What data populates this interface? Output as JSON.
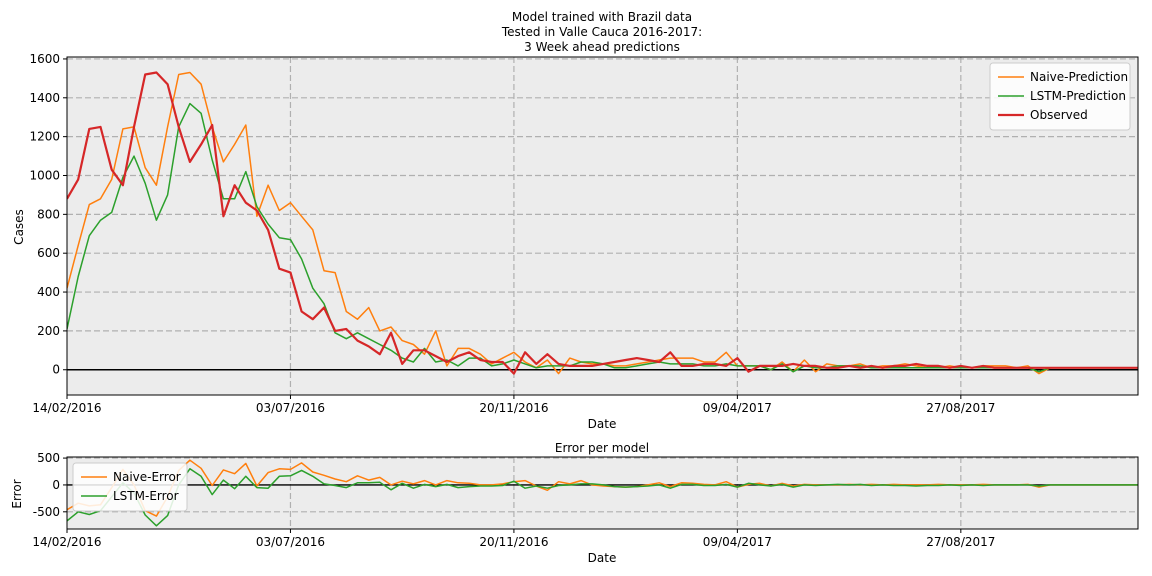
{
  "colors": {
    "naive": "#ff7f0e",
    "lstm": "#2ca02c",
    "observed": "#d62728",
    "plot_bg": "#ececec",
    "grid": "#b0b0b0"
  },
  "chart_data": [
    {
      "type": "line",
      "title_lines": [
        "Model trained with Brazil data",
        "Tested in Valle Cauca 2016-2017:",
        "3 Week ahead predictions"
      ],
      "xlabel": "Date",
      "ylabel": "Cases",
      "x_start": "14/02/2016",
      "x_step_days": 7,
      "xlim": [
        "14/02/2016",
        "16/12/2017"
      ],
      "ylim": [
        -130,
        1610
      ],
      "yticks": [
        0,
        200,
        400,
        600,
        800,
        1000,
        1200,
        1400,
        1600
      ],
      "xticks": [
        "14/02/2016",
        "03/07/2016",
        "20/11/2016",
        "09/04/2017",
        "27/08/2017"
      ],
      "grid": true,
      "zero_line": true,
      "legend_position": "top-right",
      "series": [
        {
          "name": "Naive-Prediction",
          "color_key": "naive",
          "width": 1.5,
          "values": [
            420,
            640,
            850,
            880,
            980,
            1240,
            1250,
            1040,
            950,
            1250,
            1520,
            1530,
            1470,
            1250,
            1070,
            1160,
            1260,
            790,
            950,
            820,
            860,
            790,
            720,
            510,
            500,
            300,
            260,
            320,
            200,
            220,
            150,
            130,
            80,
            200,
            20,
            110,
            110,
            80,
            30,
            60,
            90,
            40,
            10,
            50,
            -20,
            60,
            40,
            30,
            30,
            20,
            20,
            30,
            40,
            50,
            60,
            60,
            60,
            40,
            40,
            90,
            20,
            20,
            20,
            0,
            40,
            -10,
            50,
            -10,
            30,
            20,
            20,
            30,
            10,
            20,
            20,
            30,
            20,
            10,
            10,
            20,
            10,
            10,
            20,
            20,
            20,
            10,
            20,
            -20,
            10,
            10,
            10,
            10,
            10,
            10,
            10,
            10,
            10,
            10,
            20,
            10,
            10,
            10,
            70,
            -20,
            0
          ],
          "note_values_also_cover_error_panel": false
        },
        {
          "name": "LSTM-Prediction",
          "color_key": "lstm",
          "width": 1.5,
          "values": [
            210,
            480,
            690,
            770,
            810,
            990,
            1100,
            960,
            770,
            900,
            1250,
            1370,
            1320,
            1080,
            880,
            880,
            1020,
            840,
            750,
            680,
            670,
            570,
            420,
            340,
            190,
            160,
            190,
            160,
            130,
            100,
            60,
            40,
            110,
            40,
            50,
            20,
            60,
            60,
            20,
            30,
            50,
            30,
            10,
            20,
            20,
            20,
            40,
            40,
            30,
            10,
            10,
            20,
            30,
            40,
            30,
            30,
            30,
            20,
            20,
            30,
            20,
            20,
            20,
            0,
            30,
            -10,
            20,
            10,
            10,
            20,
            20,
            20,
            10,
            10,
            10,
            10,
            10,
            10,
            10,
            10,
            10,
            10,
            10,
            10,
            10,
            10,
            10,
            -10,
            10,
            10,
            10,
            10,
            10,
            10,
            10,
            10,
            10,
            10,
            10,
            10,
            10,
            10,
            30,
            20,
            0
          ]
        },
        {
          "name": "Observed",
          "color_key": "observed",
          "width": 2.2,
          "values": [
            880,
            980,
            1240,
            1250,
            1030,
            950,
            1250,
            1520,
            1530,
            1470,
            1250,
            1070,
            1160,
            1260,
            790,
            950,
            860,
            820,
            720,
            520,
            500,
            300,
            260,
            320,
            200,
            210,
            150,
            120,
            80,
            190,
            30,
            100,
            100,
            70,
            40,
            70,
            90,
            50,
            40,
            40,
            -20,
            90,
            30,
            80,
            30,
            20,
            20,
            20,
            30,
            40,
            50,
            60,
            50,
            40,
            90,
            20,
            20,
            30,
            30,
            20,
            60,
            -10,
            20,
            20,
            20,
            30,
            20,
            20,
            10,
            10,
            20,
            10,
            20,
            10,
            20,
            20,
            30,
            20,
            20,
            10,
            20,
            10,
            20,
            10,
            10,
            10,
            10,
            10,
            10,
            10,
            10,
            10,
            10,
            10,
            10,
            10,
            10,
            10,
            70,
            -10,
            20,
            10,
            -40,
            10
          ]
        }
      ]
    },
    {
      "type": "line",
      "title_lines": [
        "Error per model"
      ],
      "xlabel": "Date",
      "ylabel": "Error",
      "x_start": "14/02/2016",
      "x_step_days": 7,
      "xlim": [
        "14/02/2016",
        "16/12/2017"
      ],
      "ylim": [
        -820,
        520
      ],
      "yticks": [
        -500,
        0,
        500
      ],
      "xticks": [
        "14/02/2016",
        "03/07/2016",
        "20/11/2016",
        "09/04/2017",
        "27/08/2017"
      ],
      "grid": true,
      "zero_line": true,
      "legend_position": "top-left",
      "series": [
        {
          "name": "Naive-Error",
          "color_key": "naive",
          "width": 1.5,
          "values": [
            -460,
            -340,
            -390,
            -370,
            -50,
            290,
            0,
            -480,
            -580,
            -220,
            270,
            460,
            310,
            -10,
            280,
            210,
            400,
            -20,
            230,
            300,
            290,
            410,
            240,
            180,
            110,
            60,
            170,
            90,
            140,
            0,
            70,
            20,
            80,
            0,
            80,
            40,
            30,
            0,
            0,
            20,
            60,
            80,
            -20,
            -100,
            60,
            20,
            80,
            0,
            -20,
            -30,
            -40,
            -30,
            0,
            40,
            -30,
            40,
            30,
            10,
            0,
            60,
            -40,
            10,
            30,
            -20,
            30,
            -20,
            10,
            0,
            0,
            0,
            10,
            0,
            10,
            0,
            10,
            0,
            0,
            0,
            10,
            0,
            0,
            0,
            10,
            0,
            0,
            0,
            10,
            -40,
            0,
            0,
            0,
            0,
            0,
            0,
            0,
            0,
            0,
            0,
            0,
            0,
            0,
            0,
            50,
            -20,
            0
          ]
        },
        {
          "name": "LSTM-Error",
          "color_key": "lstm",
          "width": 1.5,
          "values": [
            -670,
            -500,
            -550,
            -480,
            -220,
            40,
            -150,
            -560,
            -760,
            -570,
            0,
            300,
            160,
            -180,
            90,
            -70,
            160,
            -50,
            -60,
            160,
            170,
            270,
            160,
            20,
            -10,
            -50,
            40,
            40,
            50,
            -90,
            30,
            -60,
            10,
            -30,
            10,
            -50,
            -30,
            -20,
            -20,
            -10,
            70,
            -60,
            -20,
            -60,
            -10,
            0,
            20,
            20,
            0,
            -30,
            -40,
            -30,
            -20,
            0,
            -60,
            10,
            10,
            -10,
            -10,
            10,
            -40,
            30,
            0,
            -20,
            10,
            -40,
            0,
            -10,
            0,
            10,
            0,
            10,
            -10,
            0,
            -10,
            -10,
            -20,
            -10,
            -10,
            0,
            -10,
            0,
            -10,
            0,
            0,
            0,
            0,
            -20,
            0,
            0,
            0,
            0,
            0,
            0,
            0,
            0,
            0,
            0,
            -60,
            20,
            -10,
            0,
            70,
            10,
            -10
          ]
        }
      ]
    }
  ]
}
